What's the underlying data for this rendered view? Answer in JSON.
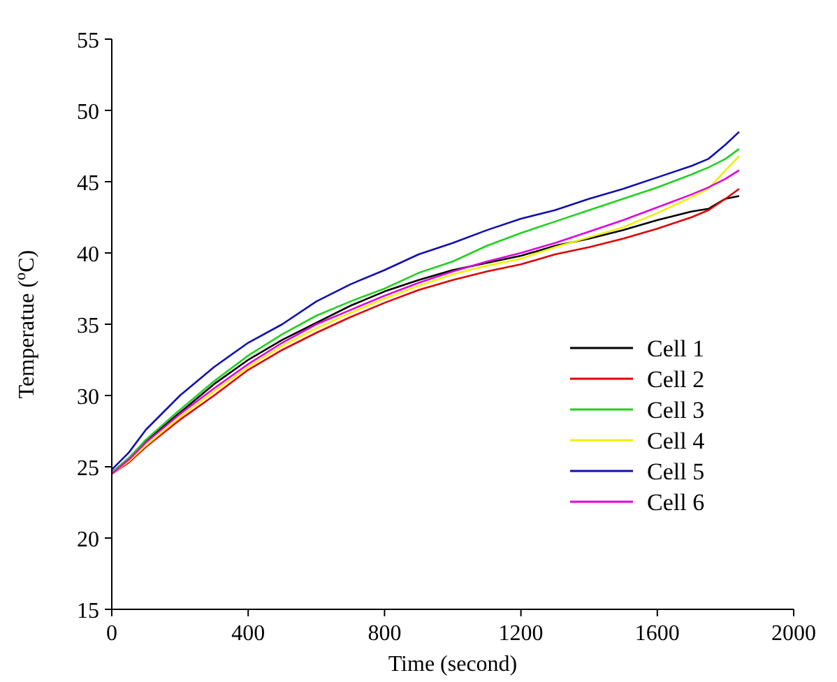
{
  "chart_data": {
    "type": "line",
    "xlabel": "Time (second)",
    "ylabel": "Temperatue ($^{o}$C)",
    "x": [
      0,
      50,
      100,
      200,
      300,
      400,
      500,
      600,
      700,
      800,
      900,
      1000,
      1100,
      1200,
      1300,
      1400,
      1500,
      1600,
      1700,
      1750,
      1800,
      1840
    ],
    "xlim": [
      0,
      2000
    ],
    "xticks": [
      0,
      400,
      800,
      1200,
      1600,
      2000
    ],
    "ylim": [
      15,
      55
    ],
    "yticks": [
      15,
      20,
      25,
      30,
      35,
      40,
      45,
      50,
      55
    ],
    "legend": "bottom right",
    "grid": false,
    "series": [
      {
        "name": "Cell 1",
        "color": "#000000",
        "values": [
          24.6,
          25.6,
          26.8,
          28.8,
          30.8,
          32.5,
          33.9,
          35.1,
          36.3,
          37.3,
          38.1,
          38.8,
          39.3,
          39.8,
          40.5,
          41.0,
          41.6,
          42.3,
          42.9,
          43.1,
          43.8,
          44.0
        ]
      },
      {
        "name": "Cell 2",
        "color": "#e00000",
        "values": [
          24.5,
          25.3,
          26.4,
          28.3,
          30.0,
          31.8,
          33.2,
          34.4,
          35.5,
          36.5,
          37.4,
          38.1,
          38.7,
          39.2,
          39.9,
          40.4,
          41.0,
          41.7,
          42.5,
          43.0,
          43.8,
          44.5
        ]
      },
      {
        "name": "Cell 3",
        "color": "#20d020",
        "values": [
          24.6,
          25.6,
          26.9,
          29.0,
          31.0,
          32.8,
          34.3,
          35.6,
          36.6,
          37.5,
          38.6,
          39.4,
          40.5,
          41.4,
          42.2,
          43.0,
          43.8,
          44.6,
          45.5,
          46.0,
          46.6,
          47.3
        ]
      },
      {
        "name": "Cell 4",
        "color": "#f0f000",
        "values": [
          24.5,
          25.4,
          26.5,
          28.5,
          30.3,
          32.0,
          33.5,
          34.7,
          35.8,
          36.8,
          37.7,
          38.5,
          39.1,
          39.6,
          40.4,
          41.1,
          41.8,
          42.8,
          43.9,
          44.5,
          45.8,
          46.8
        ]
      },
      {
        "name": "Cell 5",
        "color": "#1010b0",
        "values": [
          24.8,
          26.0,
          27.6,
          30.0,
          32.0,
          33.7,
          35.0,
          36.6,
          37.8,
          38.8,
          39.9,
          40.7,
          41.6,
          42.4,
          43.0,
          43.8,
          44.5,
          45.3,
          46.1,
          46.6,
          47.6,
          48.5
        ]
      },
      {
        "name": "Cell 6",
        "color": "#e000e0",
        "values": [
          24.5,
          25.5,
          26.7,
          28.7,
          30.5,
          32.2,
          33.7,
          35.0,
          36.0,
          37.0,
          37.9,
          38.7,
          39.4,
          40.0,
          40.7,
          41.5,
          42.3,
          43.2,
          44.1,
          44.6,
          45.2,
          45.8
        ]
      }
    ]
  }
}
